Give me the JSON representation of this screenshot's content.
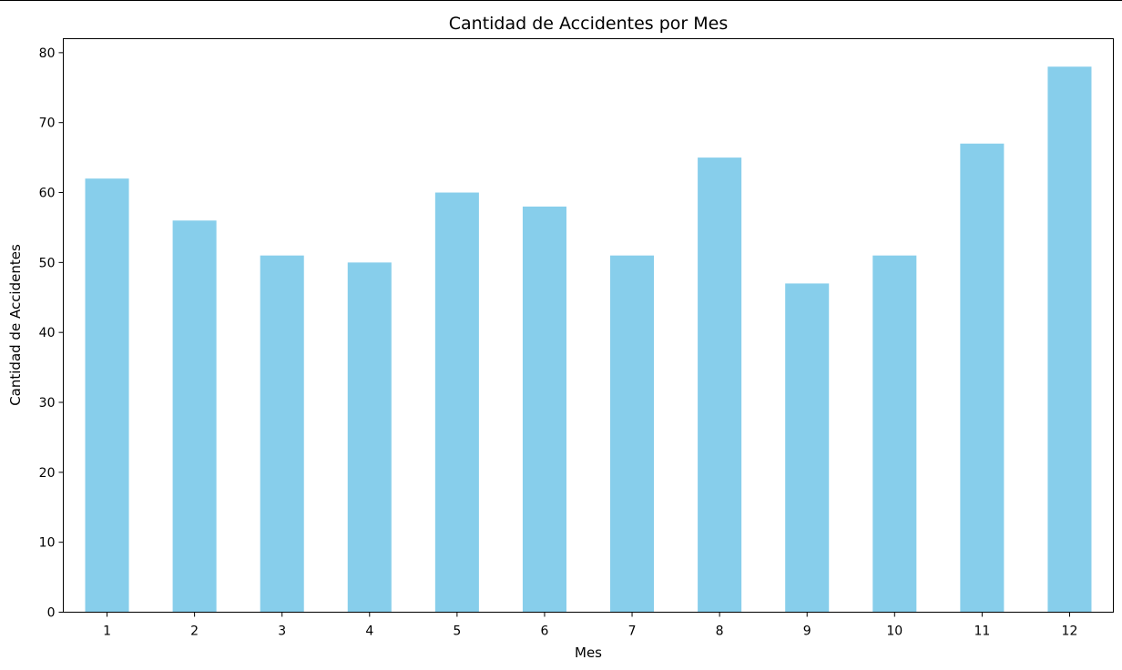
{
  "chart_data": {
    "type": "bar",
    "title": "Cantidad de Accidentes por Mes",
    "xlabel": "Mes",
    "ylabel": "Cantidad de Accidentes",
    "categories": [
      "1",
      "2",
      "3",
      "4",
      "5",
      "6",
      "7",
      "8",
      "9",
      "10",
      "11",
      "12"
    ],
    "values": [
      62,
      56,
      51,
      50,
      60,
      58,
      51,
      65,
      47,
      51,
      67,
      78
    ],
    "ylim": [
      0,
      82
    ],
    "yticks": [
      0,
      10,
      20,
      30,
      40,
      50,
      60,
      70,
      80
    ],
    "ytick_labels": [
      "0",
      "10",
      "20",
      "30",
      "40",
      "50",
      "60",
      "70",
      "80"
    ],
    "grid": false,
    "legend": "none",
    "bar_color": "#87ceeb"
  }
}
